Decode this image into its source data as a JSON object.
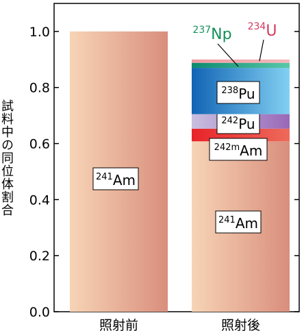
{
  "chart_data": {
    "type": "bar",
    "stacked": true,
    "ylabel": "試料中の同位体割合",
    "ylim": [
      0,
      1.1
    ],
    "yticks": [
      "0.0",
      "0.2",
      "0.4",
      "0.6",
      "0.8",
      "1.0"
    ],
    "categories": [
      "照射前",
      "照射後"
    ],
    "bars": [
      {
        "category": "照射前",
        "segments": [
          {
            "name": "241Am",
            "sup": "241",
            "base": "Am",
            "value": 1.0,
            "color_from": "#f7d4b6",
            "color_to": "#d98e7c"
          }
        ]
      },
      {
        "category": "照射後",
        "segments": [
          {
            "name": "241Am",
            "sup": "241",
            "base": "Am",
            "value": 0.608,
            "color_from": "#f7d4b6",
            "color_to": "#d98e7c"
          },
          {
            "name": "242mAm",
            "sup": "242m",
            "base": "Am",
            "value": 0.045,
            "color_from": "#e8232a",
            "color_to": "#ee6a5a"
          },
          {
            "name": "242Pu",
            "sup": "242",
            "base": "Pu",
            "value": 0.052,
            "color_from": "#c9bfe0",
            "color_to": "#9a68b8"
          },
          {
            "name": "238Pu",
            "sup": "238",
            "base": "Pu",
            "value": 0.165,
            "color_from": "#1164b4",
            "color_to": "#82d0f2"
          },
          {
            "name": "237Np",
            "sup": "237",
            "base": "Np",
            "value": 0.018,
            "color_from": "#0d8a6e",
            "color_to": "#58c8a8"
          },
          {
            "name": "234U",
            "sup": "234",
            "base": "U",
            "value": 0.012,
            "color_from": "#ef9aa0",
            "color_to": "#f4b8bb"
          }
        ]
      }
    ],
    "annotations": [
      {
        "target": "237Np",
        "sup": "237",
        "base": "Np",
        "color": "#14905a"
      },
      {
        "target": "234U",
        "sup": "234",
        "base": "U",
        "color": "#d43a5c"
      }
    ]
  }
}
